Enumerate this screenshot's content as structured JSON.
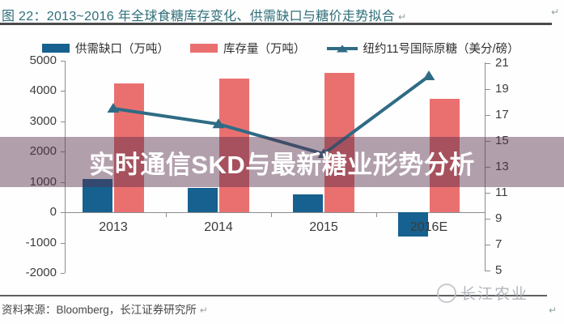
{
  "title": "图 22：2013~2016 年全球食糖库存变化、供需缺口与糖价走势拟合",
  "overlay": {
    "text": "实时通信SKD与最新糖业形势分析"
  },
  "footer": {
    "source": "资料来源：Bloomberg，长江证券研究所",
    "watermark": "长江农业"
  },
  "return_mark": "↵",
  "colors": {
    "title_text": "#2e6f7a",
    "overlay_band": "rgba(87,44,73,0.45)",
    "axis_text": "#3d3d3d",
    "axis_line": "#8d8d8d"
  },
  "chart_data": {
    "type": "bar",
    "subtype": "bar-line-combo",
    "categories": [
      "2013",
      "2014",
      "2015",
      "2016E"
    ],
    "series": [
      {
        "name": "供需缺口（万吨）",
        "type": "bar",
        "axis": "left",
        "color": "#16618f",
        "values": [
          1100,
          800,
          600,
          -800
        ]
      },
      {
        "name": "库存量（万吨）",
        "type": "bar",
        "axis": "left",
        "color": "#ea7070",
        "values": [
          4250,
          4400,
          4600,
          3750
        ]
      },
      {
        "name": "纽约11号国际原糖（美分/磅）",
        "type": "line",
        "axis": "right",
        "color": "#2f6b85",
        "values": [
          17.5,
          16.3,
          14,
          20
        ]
      }
    ],
    "left_axis": {
      "min": -2000,
      "max": 5000,
      "ticks": [
        5000,
        4000,
        3000,
        2000,
        1000,
        0,
        -1000,
        -2000
      ]
    },
    "right_axis": {
      "min": 5,
      "max": 21,
      "ticks": [
        21,
        19,
        17,
        15,
        13,
        11,
        9,
        7,
        5
      ]
    },
    "legend_position": "top",
    "grid": false
  }
}
